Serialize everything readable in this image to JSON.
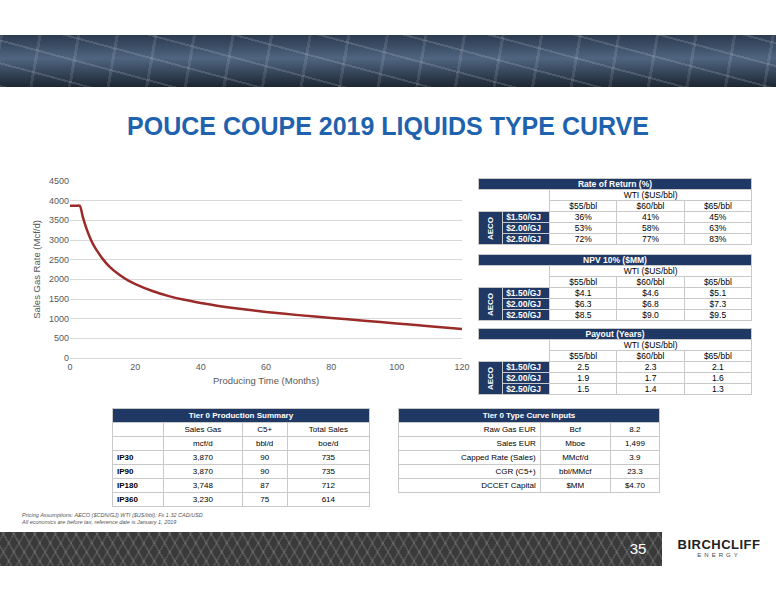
{
  "title": "POUCE COUPE 2019 LIQUIDS TYPE CURVE",
  "chart_data": {
    "type": "line",
    "xlabel": "Producing Time (Months)",
    "ylabel": "Sales Gas Rate (Mcf/d)",
    "x": [
      0,
      1,
      2,
      3,
      4,
      5,
      6,
      7,
      8,
      10,
      12,
      15,
      18,
      20,
      25,
      30,
      35,
      40,
      45,
      50,
      60,
      70,
      80,
      90,
      100,
      110,
      120
    ],
    "values": [
      3870,
      3870,
      3870,
      3870,
      3560,
      3300,
      3080,
      2900,
      2760,
      2520,
      2330,
      2120,
      1960,
      1880,
      1710,
      1580,
      1480,
      1400,
      1330,
      1270,
      1170,
      1090,
      1020,
      950,
      880,
      810,
      740
    ],
    "color": "#9b2b28",
    "xlim": [
      0,
      120
    ],
    "xticks": [
      0,
      20,
      40,
      60,
      80,
      100,
      120
    ],
    "ylim": [
      0,
      4500
    ],
    "yticks": [
      0,
      500,
      1000,
      1500,
      2000,
      2500,
      3000,
      3500,
      4000,
      4500
    ],
    "grid": true
  },
  "sensitivity_tables": [
    {
      "title": "Rate of Return (%)",
      "column_group": "WTI ($US/bbl)",
      "columns": [
        "$55/bbl",
        "$60/bbl",
        "$65/bbl"
      ],
      "row_group": "AECO",
      "rows": [
        {
          "label": "$1.50/GJ",
          "values": [
            "36%",
            "41%",
            "45%"
          ]
        },
        {
          "label": "$2.00/GJ",
          "values": [
            "53%",
            "58%",
            "63%"
          ]
        },
        {
          "label": "$2.50/GJ",
          "values": [
            "72%",
            "77%",
            "83%"
          ]
        }
      ]
    },
    {
      "title": "NPV 10% ($MM)",
      "column_group": "WTI ($US/bbl)",
      "columns": [
        "$55/bbl",
        "$60/bbl",
        "$65/bbl"
      ],
      "row_group": "AECO",
      "rows": [
        {
          "label": "$1.50/GJ",
          "values": [
            "$4.1",
            "$4.6",
            "$5.1"
          ]
        },
        {
          "label": "$2.00/GJ",
          "values": [
            "$6.3",
            "$6.8",
            "$7.3"
          ]
        },
        {
          "label": "$2.50/GJ",
          "values": [
            "$8.5",
            "$9.0",
            "$9.5"
          ]
        }
      ]
    },
    {
      "title": "Payout (Years)",
      "column_group": "WTI ($US/bbl)",
      "columns": [
        "$55/bbl",
        "$60/bbl",
        "$65/bbl"
      ],
      "row_group": "AECO",
      "rows": [
        {
          "label": "$1.50/GJ",
          "values": [
            "2.5",
            "2.3",
            "2.1"
          ]
        },
        {
          "label": "$2.00/GJ",
          "values": [
            "1.9",
            "1.7",
            "1.6"
          ]
        },
        {
          "label": "$2.50/GJ",
          "values": [
            "1.5",
            "1.4",
            "1.3"
          ]
        }
      ]
    }
  ],
  "production_summary": {
    "title": "Tier 0 Production Summary",
    "header": [
      [
        "Sales Gas",
        "C5+",
        "Total Sales"
      ],
      [
        "mcf/d",
        "bbl/d",
        "boe/d"
      ]
    ],
    "rows": [
      {
        "label": "IP30",
        "values": [
          "3,870",
          "90",
          "735"
        ]
      },
      {
        "label": "IP90",
        "values": [
          "3,870",
          "90",
          "735"
        ]
      },
      {
        "label": "IP180",
        "values": [
          "3,748",
          "87",
          "712"
        ]
      },
      {
        "label": "IP360",
        "values": [
          "3,230",
          "75",
          "614"
        ]
      }
    ]
  },
  "type_curve_inputs": {
    "title": "Tier 0 Type Curve Inputs",
    "rows": [
      {
        "label": "Raw Gas EUR",
        "unit": "Bcf",
        "value": "8.2"
      },
      {
        "label": "Sales EUR",
        "unit": "Mboe",
        "value": "1,499"
      },
      {
        "label": "Capped Rate (Sales)",
        "unit": "MMcf/d",
        "value": "3.9"
      },
      {
        "label": "CGR (C5+)",
        "unit": "bbl/MMcf",
        "value": "23.3"
      },
      {
        "label": "DCCET Capital",
        "unit": "$MM",
        "value": "$4.70"
      }
    ]
  },
  "footnotes": [
    "Pricing Assumptions: AECO ($CDN/GJ) WTI ($US/bbl); Fx 1.32 CAD/USD",
    "All economics are before tax, reference date is January 1, 2019"
  ],
  "page_number": "35",
  "logo": {
    "name": "BIRCHCLIFF",
    "subtitle": "ENERGY"
  }
}
